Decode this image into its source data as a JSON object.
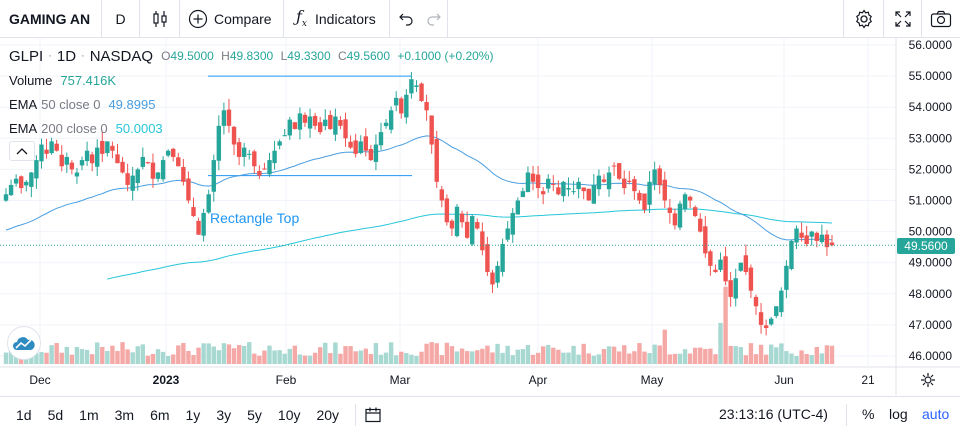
{
  "toolbar": {
    "symbol": "GAMING AN",
    "interval": "D",
    "compare_label": "Compare",
    "indicators_label": "Indicators"
  },
  "legend": {
    "symbol": "GLPI",
    "interval": "1D",
    "exchange": "NASDAQ",
    "ohlc": {
      "o_label": "O",
      "o": "49.5000",
      "h_label": "H",
      "h": "49.8300",
      "l_label": "L",
      "l": "49.3300",
      "c_label": "C",
      "c": "49.5600",
      "change": "+0.1000 (+0.20%)"
    },
    "volume": {
      "name": "Volume",
      "value": "757.416K"
    },
    "ema50": {
      "name": "EMA",
      "params": "50 close 0",
      "value": "49.8995"
    },
    "ema200": {
      "name": "EMA",
      "params": "200 close 0",
      "value": "50.0003"
    }
  },
  "drawing": {
    "label": "Rectangle Top"
  },
  "last_price_label": "49.5600",
  "bottom": {
    "ranges": [
      "1d",
      "5d",
      "1m",
      "3m",
      "6m",
      "1y",
      "3y",
      "5y",
      "10y",
      "20y"
    ],
    "time": "23:13:16 (UTC-4)",
    "percent": "%",
    "log": "log",
    "auto": "auto"
  },
  "colors": {
    "up": "#26a69a",
    "down": "#ef5350",
    "ema50": "#4a9ee0",
    "ema200": "#26c6da",
    "accent": "#2962ff"
  },
  "chart_data": {
    "type": "candlestick",
    "yaxis_ticks": [
      "56.0000",
      "55.0000",
      "54.0000",
      "53.0000",
      "52.0000",
      "51.0000",
      "50.0000",
      "49.0000",
      "48.0000",
      "47.0000",
      "46.0000"
    ],
    "ylim": [
      45.8,
      56.2
    ],
    "xaxis_ticks": [
      "Dec",
      "2023",
      "Feb",
      "Mar",
      "Apr",
      "May",
      "Jun",
      "21"
    ],
    "grid": true,
    "rectangle": {
      "top": 55.0,
      "bottom": 51.8,
      "label": "Rectangle Top"
    },
    "series": [
      {
        "name": "GLPI",
        "kind": "candles",
        "close": [
          51.2,
          51.5,
          51.7,
          51.4,
          51.6,
          51.9,
          52.3,
          52.8,
          52.5,
          52.9,
          52.6,
          52.1,
          52.4,
          52.0,
          51.9,
          52.3,
          52.6,
          52.2,
          52.7,
          52.5,
          52.9,
          52.6,
          52.2,
          51.9,
          51.5,
          51.8,
          52.0,
          52.4,
          52.2,
          51.7,
          51.9,
          52.3,
          52.6,
          52.4,
          52.1,
          51.6,
          51.0,
          50.5,
          49.9,
          50.6,
          51.2,
          52.3,
          53.4,
          53.9,
          53.4,
          52.8,
          52.4,
          52.7,
          52.5,
          52.1,
          51.8,
          52.0,
          52.3,
          52.6,
          52.9,
          53.1,
          53.6,
          53.3,
          53.8,
          53.5,
          53.7,
          53.4,
          53.2,
          53.6,
          53.3,
          53.7,
          53.4,
          53.0,
          52.7,
          52.5,
          52.9,
          52.6,
          52.3,
          52.8,
          53.2,
          53.5,
          53.9,
          54.3,
          53.8,
          54.4,
          54.9,
          54.7,
          54.2,
          53.9,
          52.8,
          51.6,
          51.0,
          50.3,
          50.1,
          50.8,
          50.3,
          49.8,
          50.5,
          50.1,
          49.4,
          48.7,
          48.3,
          48.9,
          49.6,
          50.1,
          50.6,
          51.0,
          51.3,
          51.9,
          51.6,
          51.4,
          51.2,
          51.7,
          51.5,
          51.2,
          51.6,
          51.4,
          51.3,
          51.6,
          51.3,
          51.0,
          51.5,
          51.8,
          51.6,
          51.9,
          52.1,
          51.7,
          51.4,
          51.6,
          51.3,
          51.0,
          50.7,
          51.6,
          52.0,
          51.5,
          51.0,
          50.6,
          50.2,
          50.9,
          51.2,
          51.0,
          50.5,
          50.0,
          49.3,
          48.9,
          48.7,
          49.1,
          48.4,
          47.9,
          48.5,
          49.0,
          48.7,
          48.1,
          47.6,
          47.0,
          46.9,
          47.2,
          47.6,
          48.1,
          48.9,
          49.7,
          50.1,
          49.8,
          49.6,
          50.0,
          49.7,
          49.9,
          49.5,
          49.56
        ]
      },
      {
        "name": "EMA 50",
        "kind": "line"
      },
      {
        "name": "EMA 200",
        "kind": "line"
      },
      {
        "name": "Volume",
        "kind": "bars"
      }
    ]
  }
}
